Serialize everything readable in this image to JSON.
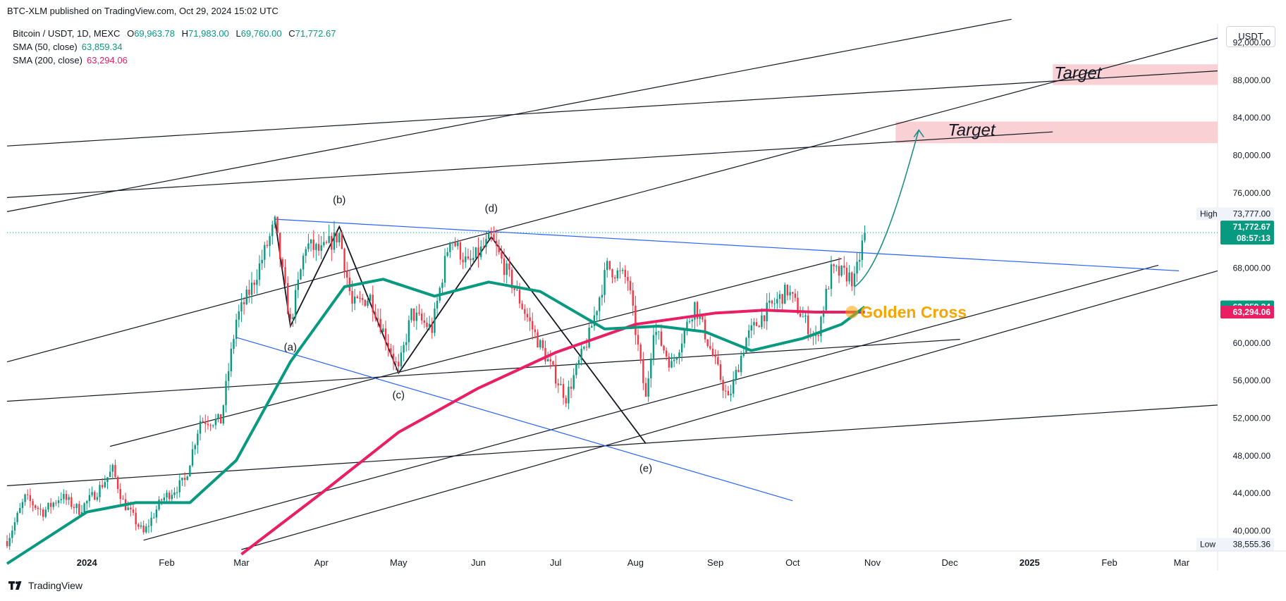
{
  "header": {
    "published": "BTC-XLM published on TradingView.com, Oct 29, 2024 15:02 UTC"
  },
  "legend": {
    "symbol": "Bitcoin / USDT, 1D, MEXC",
    "o_label": "O",
    "o": "69,963.78",
    "h_label": "H",
    "h": "71,983.00",
    "l_label": "L",
    "l": "69,760.00",
    "c_label": "C",
    "c": "71,772.67",
    "sma50_label": "SMA (50, close)",
    "sma50": "63,859.34",
    "sma200_label": "SMA (200, close)",
    "sma200": "63,294.06"
  },
  "currency_button": "USDT",
  "footer": {
    "brand": "TradingView"
  },
  "colors": {
    "up": "#089981",
    "down": "#f23645",
    "sma50": "#089981",
    "sma200": "#e91e63",
    "trend_blue": "#2962ff",
    "target_fill": "#f8c9ce",
    "golden": "#f7a600"
  },
  "chart_data": {
    "type": "candlestick",
    "x_ticks": [
      {
        "label": "2024",
        "date": "2024-01-01"
      },
      {
        "label": "Feb",
        "date": "2024-02-01"
      },
      {
        "label": "Mar",
        "date": "2024-03-01"
      },
      {
        "label": "Apr",
        "date": "2024-04-01"
      },
      {
        "label": "May",
        "date": "2024-05-01"
      },
      {
        "label": "Jun",
        "date": "2024-06-01"
      },
      {
        "label": "Jul",
        "date": "2024-07-01"
      },
      {
        "label": "Aug",
        "date": "2024-08-01"
      },
      {
        "label": "Sep",
        "date": "2024-09-01"
      },
      {
        "label": "Oct",
        "date": "2024-10-01"
      },
      {
        "label": "Nov",
        "date": "2024-11-01"
      },
      {
        "label": "Dec",
        "date": "2024-12-01"
      },
      {
        "label": "2025",
        "date": "2025-01-01"
      },
      {
        "label": "Feb",
        "date": "2025-02-01"
      },
      {
        "label": "Mar",
        "date": "2025-03-01"
      }
    ],
    "y_ticks": [
      {
        "label": "92,000.00",
        "v": 92000
      },
      {
        "label": "88,000.00",
        "v": 88000
      },
      {
        "label": "84,000.00",
        "v": 84000
      },
      {
        "label": "80,000.00",
        "v": 80000
      },
      {
        "label": "76,000.00",
        "v": 76000
      },
      {
        "label": "68,000.00",
        "v": 68000
      },
      {
        "label": "60,000.00",
        "v": 60000
      },
      {
        "label": "56,000.00",
        "v": 56000
      },
      {
        "label": "52,000.00",
        "v": 52000
      },
      {
        "label": "48,000.00",
        "v": 48000
      },
      {
        "label": "44,000.00",
        "v": 44000
      },
      {
        "label": "40,000.00",
        "v": 40000
      }
    ],
    "ylim": [
      38000,
      94000
    ],
    "xlim": [
      "2023-12-01",
      "2025-03-15"
    ],
    "last_close": 71772.67,
    "badges": {
      "high_label": "High",
      "high": "73,777.00",
      "high_v": 73777,
      "low_label": "Low",
      "low": "38,555.36",
      "low_v": 38555.36,
      "last": "71,772.67",
      "countdown": "08:57:13",
      "sma50": "63,859.34",
      "sma50_v": 63859.34,
      "sma200": "63,294.06",
      "sma200_v": 63294.06
    },
    "price_path": [
      [
        "2023-12-01",
        38900
      ],
      [
        "2023-12-08",
        43500
      ],
      [
        "2023-12-15",
        42000
      ],
      [
        "2023-12-22",
        43700
      ],
      [
        "2023-12-29",
        42200
      ],
      [
        "2024-01-05",
        44200
      ],
      [
        "2024-01-11",
        46500
      ],
      [
        "2024-01-15",
        43100
      ],
      [
        "2024-01-23",
        39700
      ],
      [
        "2024-01-30",
        43300
      ],
      [
        "2024-02-08",
        45300
      ],
      [
        "2024-02-14",
        51800
      ],
      [
        "2024-02-22",
        51700
      ],
      [
        "2024-02-28",
        62500
      ],
      [
        "2024-03-05",
        66000
      ],
      [
        "2024-03-14",
        72700
      ],
      [
        "2024-03-20",
        62000
      ],
      [
        "2024-03-26",
        70500
      ],
      [
        "2024-04-01",
        69700
      ],
      [
        "2024-04-08",
        71600
      ],
      [
        "2024-04-13",
        64000
      ],
      [
        "2024-04-20",
        64900
      ],
      [
        "2024-05-01",
        57000
      ],
      [
        "2024-05-06",
        63100
      ],
      [
        "2024-05-14",
        61500
      ],
      [
        "2024-05-21",
        71400
      ],
      [
        "2024-05-28",
        68300
      ],
      [
        "2024-06-06",
        71100
      ],
      [
        "2024-06-13",
        67000
      ],
      [
        "2024-06-24",
        60300
      ],
      [
        "2024-07-05",
        54200
      ],
      [
        "2024-07-14",
        60800
      ],
      [
        "2024-07-21",
        68100
      ],
      [
        "2024-07-29",
        66800
      ],
      [
        "2024-08-05",
        54000
      ],
      [
        "2024-08-08",
        61700
      ],
      [
        "2024-08-15",
        57600
      ],
      [
        "2024-08-24",
        64100
      ],
      [
        "2024-09-06",
        53900
      ],
      [
        "2024-09-13",
        60500
      ],
      [
        "2024-09-20",
        63200
      ],
      [
        "2024-09-29",
        65600
      ],
      [
        "2024-10-10",
        60300
      ],
      [
        "2024-10-16",
        67600
      ],
      [
        "2024-10-22",
        67300
      ],
      [
        "2024-10-25",
        66600
      ],
      [
        "2024-10-29",
        71772.67
      ]
    ],
    "sma50_path": [
      [
        "2023-12-01",
        36500
      ],
      [
        "2024-01-01",
        42000
      ],
      [
        "2024-01-20",
        43000
      ],
      [
        "2024-02-10",
        43000
      ],
      [
        "2024-02-28",
        47500
      ],
      [
        "2024-03-20",
        58000
      ],
      [
        "2024-04-10",
        66000
      ],
      [
        "2024-04-25",
        66800
      ],
      [
        "2024-05-15",
        65000
      ],
      [
        "2024-06-05",
        66500
      ],
      [
        "2024-06-25",
        65500
      ],
      [
        "2024-07-20",
        61500
      ],
      [
        "2024-08-10",
        61800
      ],
      [
        "2024-08-28",
        61200
      ],
      [
        "2024-09-15",
        59200
      ],
      [
        "2024-10-05",
        60500
      ],
      [
        "2024-10-20",
        62000
      ],
      [
        "2024-10-29",
        63859.34
      ]
    ],
    "sma200_path": [
      [
        "2024-03-01",
        37500
      ],
      [
        "2024-04-01",
        44000
      ],
      [
        "2024-05-01",
        50500
      ],
      [
        "2024-06-01",
        55200
      ],
      [
        "2024-07-01",
        59000
      ],
      [
        "2024-08-01",
        62000
      ],
      [
        "2024-09-01",
        63200
      ],
      [
        "2024-09-20",
        63500
      ],
      [
        "2024-10-10",
        63300
      ],
      [
        "2024-10-29",
        63294.06
      ]
    ],
    "trendlines": [
      {
        "color": "#131722",
        "points": [
          [
            "2023-12-01",
            74000
          ],
          [
            "2024-12-25",
            94500
          ]
        ]
      },
      {
        "color": "#131722",
        "points": [
          [
            "2023-12-01",
            58000
          ],
          [
            "2025-03-15",
            92500
          ]
        ]
      },
      {
        "color": "#131722",
        "points": [
          [
            "2023-12-01",
            81000
          ],
          [
            "2025-03-15",
            89000
          ]
        ]
      },
      {
        "color": "#131722",
        "points": [
          [
            "2023-12-01",
            75500
          ],
          [
            "2025-01-10",
            82500
          ]
        ]
      },
      {
        "color": "#131722",
        "points": [
          [
            "2024-01-10",
            49000
          ],
          [
            "2024-10-20",
            69000
          ]
        ]
      },
      {
        "color": "#131722",
        "points": [
          [
            "2023-12-01",
            53800
          ],
          [
            "2024-12-05",
            60400
          ]
        ]
      },
      {
        "color": "#131722",
        "points": [
          [
            "2023-12-01",
            44800
          ],
          [
            "2025-03-15",
            53400
          ]
        ]
      },
      {
        "color": "#131722",
        "points": [
          [
            "2024-01-23",
            39000
          ],
          [
            "2025-02-20",
            68300
          ]
        ]
      },
      {
        "color": "#131722",
        "points": [
          [
            "2024-03-01",
            38000
          ],
          [
            "2025-03-15",
            67700
          ]
        ]
      },
      {
        "color": "#2962ff",
        "points": [
          [
            "2024-03-14",
            73200
          ],
          [
            "2025-02-28",
            67700
          ]
        ]
      },
      {
        "color": "#2962ff",
        "points": [
          [
            "2024-02-28",
            60600
          ],
          [
            "2024-10-01",
            43200
          ]
        ]
      },
      {
        "color": "#131722",
        "points": [
          [
            "2024-03-14",
            73200
          ],
          [
            "2024-03-20",
            61800
          ],
          [
            "2024-04-08",
            72400
          ],
          [
            "2024-05-01",
            56800
          ],
          [
            "2024-06-06",
            71300
          ],
          [
            "2024-08-05",
            49300
          ]
        ]
      }
    ],
    "projection": [
      [
        "2024-10-25",
        66000
      ],
      [
        "2024-11-05",
        68000
      ],
      [
        "2024-11-15",
        79000
      ],
      [
        "2024-11-19",
        82700
      ]
    ],
    "wave_labels": [
      {
        "text": "(a)",
        "date": "2024-03-20",
        "v": 59200
      },
      {
        "text": "(b)",
        "date": "2024-04-08",
        "v": 74900
      },
      {
        "text": "(c)",
        "date": "2024-05-01",
        "v": 54100
      },
      {
        "text": "(d)",
        "date": "2024-06-06",
        "v": 74000
      },
      {
        "text": "(e)",
        "date": "2024-08-05",
        "v": 46300
      }
    ],
    "targets": [
      {
        "label": "Target",
        "from": "2025-01-10",
        "to": "2025-03-15",
        "low": 87500,
        "high": 89700
      },
      {
        "label": "Target",
        "from": "2024-11-10",
        "to": "2025-03-15",
        "low": 81300,
        "high": 83600
      }
    ],
    "golden_cross": {
      "label": "Golden Cross",
      "date": "2024-10-24",
      "v": 63300
    }
  }
}
